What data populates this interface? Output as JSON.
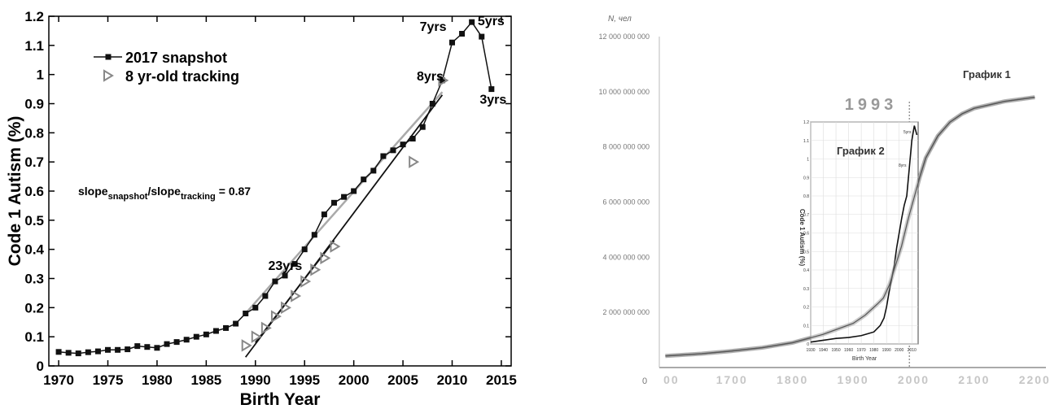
{
  "chart_data": [
    {
      "type": "line",
      "title": "",
      "xlabel": "Birth Year",
      "ylabel": "Code 1 Autism (%)",
      "xlim": [
        1969,
        2016
      ],
      "ylim": [
        0,
        1.2
      ],
      "x_ticks": [
        "1970",
        "1975",
        "1980",
        "1985",
        "1990",
        "1995",
        "2000",
        "2005",
        "2010",
        "2015"
      ],
      "y_ticks": [
        "0",
        "0.1",
        "0.2",
        "0.3",
        "0.4",
        "0.5",
        "0.6",
        "0.7",
        "0.8",
        "0.9",
        "1",
        "1.1",
        "1.2"
      ],
      "grid": false,
      "legend": "top-left",
      "series": [
        {
          "name": "2017 snapshot",
          "marker": "square",
          "color": "#111111",
          "x": [
            1970,
            1971,
            1972,
            1973,
            1974,
            1975,
            1976,
            1977,
            1978,
            1979,
            1980,
            1981,
            1982,
            1983,
            1984,
            1985,
            1986,
            1987,
            1988,
            1989,
            1990,
            1991,
            1992,
            1993,
            1994,
            1995,
            1996,
            1997,
            1998,
            1999,
            2000,
            2001,
            2002,
            2003,
            2004,
            2005,
            2006,
            2007,
            2008,
            2009,
            2010,
            2011,
            2012,
            2013,
            2014
          ],
          "y": [
            0.048,
            0.045,
            0.043,
            0.047,
            0.05,
            0.055,
            0.055,
            0.057,
            0.068,
            0.065,
            0.062,
            0.075,
            0.082,
            0.09,
            0.1,
            0.108,
            0.12,
            0.13,
            0.145,
            0.18,
            0.2,
            0.24,
            0.29,
            0.31,
            0.35,
            0.4,
            0.45,
            0.52,
            0.56,
            0.58,
            0.6,
            0.64,
            0.67,
            0.72,
            0.74,
            0.76,
            0.78,
            0.82,
            0.9,
            0.98,
            1.11,
            1.14,
            1.18,
            1.13,
            0.95
          ]
        },
        {
          "name": "8 yr-old tracking",
          "marker": "triangle-right",
          "color": "#888888",
          "x": [
            1989,
            1990,
            1991,
            1992,
            1993,
            1994,
            1995,
            1996,
            1997,
            1998,
            2006,
            2009
          ],
          "y": [
            0.07,
            0.1,
            0.13,
            0.17,
            0.2,
            0.24,
            0.29,
            0.33,
            0.37,
            0.41,
            0.7,
            0.98
          ]
        }
      ],
      "fit_lines": [
        {
          "color": "#aaaaaa",
          "x": [
            1989,
            2009
          ],
          "y": [
            0.18,
            0.94
          ]
        },
        {
          "color": "#111111",
          "x": [
            1989,
            2009
          ],
          "y": [
            0.03,
            0.93
          ]
        },
        {
          "color": "#111111",
          "x": [
            1990,
            1998
          ],
          "y": [
            0.08,
            0.43
          ]
        }
      ],
      "annotations": [
        {
          "text": "23yrs",
          "x": 1991.3,
          "y": 0.33
        },
        {
          "text": "8yrs",
          "x": 2006.4,
          "y": 0.98
        },
        {
          "text": "7yrs",
          "x": 2006.7,
          "y": 1.15
        },
        {
          "text": "5yrs",
          "x": 2012.6,
          "y": 1.17
        },
        {
          "text": "3yrs",
          "x": 2012.8,
          "y": 0.9
        }
      ],
      "ratio_label": {
        "prefix": "slope",
        "sub1": "snapshot",
        "mid": "/slope",
        "sub2": "tracking",
        "suffix": "= 0.87"
      }
    },
    {
      "type": "line",
      "title": "",
      "ylabel": "N, чел",
      "xlim": [
        1580,
        2205
      ],
      "ylim": [
        0,
        12000000000
      ],
      "x_ticks": [
        "00",
        "1700",
        "1800",
        "1900",
        "2000",
        "2100",
        "2200"
      ],
      "y_ticks": [
        "0",
        "2 000 000 000",
        "4 000 000 000",
        "6 000 000 000",
        "8 000 000 000",
        "10 000 000 000",
        "12 000 000 000"
      ],
      "labels": {
        "graph1": "График 1",
        "graph2": "График 2",
        "year": "1993",
        "zero": "0"
      },
      "series": [
        {
          "name": "",
          "color": "#444444",
          "x": [
            1590,
            1650,
            1700,
            1750,
            1800,
            1850,
            1900,
            1920,
            1940,
            1950,
            1960,
            1970,
            1980,
            1990,
            1993,
            2000,
            2010,
            2020,
            2040,
            2060,
            2080,
            2100,
            2150,
            2200
          ],
          "y": [
            420000000,
            500000000,
            600000000,
            720000000,
            900000000,
            1200000000,
            1600000000,
            1900000000,
            2300000000,
            2520000000,
            3000000000,
            3700000000,
            4400000000,
            5300000000,
            5550000000,
            6100000000,
            6900000000,
            7600000000,
            8400000000,
            8900000000,
            9200000000,
            9400000000,
            9650000000,
            9800000000
          ]
        }
      ],
      "inset": {
        "ylabel": "Code 1 Autism (%)",
        "xlabel": "Birth Year",
        "x_ticks": [
          "1930",
          "1940",
          "1950",
          "1960",
          "1970",
          "1980",
          "1990",
          "2000",
          "2010"
        ],
        "y_ticks": [
          "0",
          "0.1",
          "0.2",
          "0.3",
          "0.4",
          "0.5",
          "0.6",
          "0.7",
          "0.8",
          "0.9",
          "1",
          "1.1",
          "1.2"
        ],
        "xlim": [
          1930,
          2015
        ],
        "ylim": [
          0,
          1.2
        ],
        "series": [
          {
            "name": "",
            "color": "#111111",
            "x": [
              1930,
              1940,
              1950,
              1960,
              1970,
              1975,
              1980,
              1985,
              1988,
              1990,
              1992,
              1994,
              1996,
              1998,
              2000,
              2002,
              2004,
              2006,
              2008,
              2010,
              2012,
              2014
            ],
            "y": [
              0.01,
              0.02,
              0.03,
              0.035,
              0.045,
              0.055,
              0.065,
              0.1,
              0.14,
              0.2,
              0.28,
              0.35,
              0.42,
              0.52,
              0.6,
              0.68,
              0.75,
              0.8,
              0.95,
              1.1,
              1.18,
              1.13
            ]
          }
        ],
        "marker_labels": [
          "8yrs",
          "5yrs"
        ]
      }
    }
  ]
}
